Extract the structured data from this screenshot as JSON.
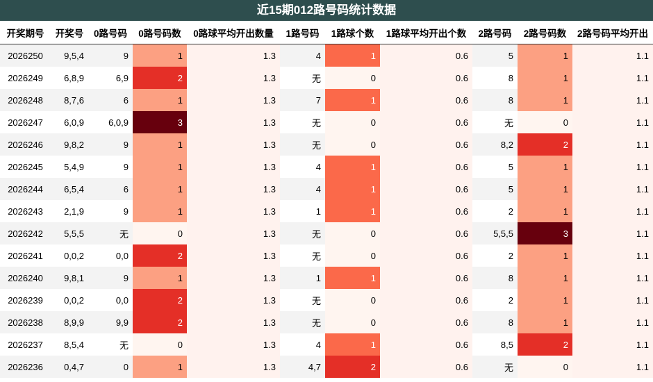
{
  "title": "近15期012路号码统计数据",
  "columns": [
    "开奖期号",
    "开奖号",
    "0路号码",
    "0路号码数",
    "0路球平均开出数量",
    "1路号码",
    "1路球个数",
    "1路球平均开出个数",
    "2路号码",
    "2路号码数",
    "2路号码平均开出"
  ],
  "avg": {
    "r0": "1.3",
    "r1": "0.6",
    "r2": "1.1"
  },
  "rows": [
    {
      "issue": "2026250",
      "draw": "9,5,4",
      "r0": "9",
      "r0n": 1,
      "r1": "4",
      "r1n": 1,
      "r2": "5",
      "r2n": 1
    },
    {
      "issue": "2026249",
      "draw": "6,8,9",
      "r0": "6,9",
      "r0n": 2,
      "r1": "无",
      "r1n": 0,
      "r2": "8",
      "r2n": 1
    },
    {
      "issue": "2026248",
      "draw": "8,7,6",
      "r0": "6",
      "r0n": 1,
      "r1": "7",
      "r1n": 1,
      "r2": "8",
      "r2n": 1
    },
    {
      "issue": "2026247",
      "draw": "6,0,9",
      "r0": "6,0,9",
      "r0n": 3,
      "r1": "无",
      "r1n": 0,
      "r2": "无",
      "r2n": 0
    },
    {
      "issue": "2026246",
      "draw": "9,8,2",
      "r0": "9",
      "r0n": 1,
      "r1": "无",
      "r1n": 0,
      "r2": "8,2",
      "r2n": 2
    },
    {
      "issue": "2026245",
      "draw": "5,4,9",
      "r0": "9",
      "r0n": 1,
      "r1": "4",
      "r1n": 1,
      "r2": "5",
      "r2n": 1
    },
    {
      "issue": "2026244",
      "draw": "6,5,4",
      "r0": "6",
      "r0n": 1,
      "r1": "4",
      "r1n": 1,
      "r2": "5",
      "r2n": 1
    },
    {
      "issue": "2026243",
      "draw": "2,1,9",
      "r0": "9",
      "r0n": 1,
      "r1": "1",
      "r1n": 1,
      "r2": "2",
      "r2n": 1
    },
    {
      "issue": "2026242",
      "draw": "5,5,5",
      "r0": "无",
      "r0n": 0,
      "r1": "无",
      "r1n": 0,
      "r2": "5,5,5",
      "r2n": 3
    },
    {
      "issue": "2026241",
      "draw": "0,0,2",
      "r0": "0,0",
      "r0n": 2,
      "r1": "无",
      "r1n": 0,
      "r2": "2",
      "r2n": 1
    },
    {
      "issue": "2026240",
      "draw": "9,8,1",
      "r0": "9",
      "r0n": 1,
      "r1": "1",
      "r1n": 1,
      "r2": "8",
      "r2n": 1
    },
    {
      "issue": "2026239",
      "draw": "0,0,2",
      "r0": "0,0",
      "r0n": 2,
      "r1": "无",
      "r1n": 0,
      "r2": "2",
      "r2n": 1
    },
    {
      "issue": "2026238",
      "draw": "8,9,9",
      "r0": "9,9",
      "r0n": 2,
      "r1": "无",
      "r1n": 0,
      "r2": "8",
      "r2n": 1
    },
    {
      "issue": "2026237",
      "draw": "8,5,4",
      "r0": "无",
      "r0n": 0,
      "r1": "4",
      "r1n": 1,
      "r2": "8,5",
      "r2n": 2
    },
    {
      "issue": "2026236",
      "draw": "0,4,7",
      "r0": "0",
      "r0n": 1,
      "r1": "4,7",
      "r1n": 2,
      "r2": "无",
      "r2n": 0
    }
  ]
}
